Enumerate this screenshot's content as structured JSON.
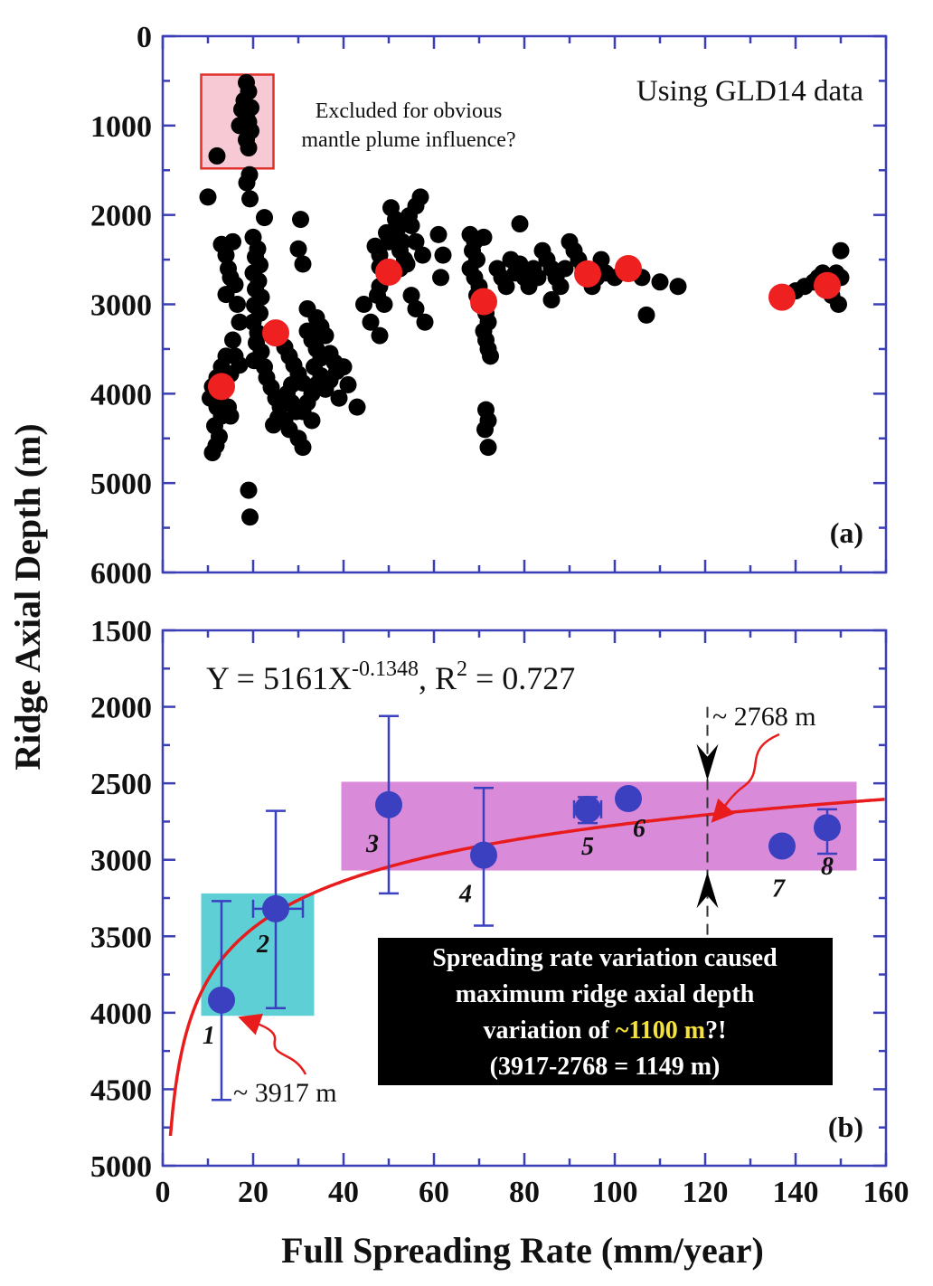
{
  "y_axis_title": "Ridge Axial Depth (m)",
  "x_axis_title": "Full Spreading Rate (mm/year)",
  "chart_data": [
    {
      "panel": "a",
      "type": "scatter",
      "panel_label": "(a)",
      "dataset_note": "Using GLD14 data",
      "excluded_note_line1": "Excluded for obvious",
      "excluded_note_line2": "mantle plume influence?",
      "xlim": [
        0,
        160
      ],
      "ylim": [
        0,
        6000
      ],
      "y_inverted": true,
      "ytick_labels": [
        "0",
        "1000",
        "2000",
        "3000",
        "4000",
        "5000",
        "6000"
      ],
      "excluded_box": {
        "x": [
          8.5,
          24.5
        ],
        "y": [
          430,
          1480
        ]
      },
      "colors": {
        "points": "#000000",
        "bin_means": "#ee2020",
        "frame": "#3a3fb8",
        "excluded_fill": "#f7c9d4",
        "excluded_edge": "#e0302a"
      },
      "series": [
        {
          "kind": "ridge-points",
          "points": [
            [
              18.5,
              520
            ],
            [
              19,
              620
            ],
            [
              18,
              720
            ],
            [
              19.5,
              800
            ],
            [
              17.5,
              820
            ],
            [
              18.5,
              880
            ],
            [
              19,
              960
            ],
            [
              17,
              1000
            ],
            [
              19.5,
              1060
            ],
            [
              18.5,
              1160
            ],
            [
              19,
              1250
            ],
            [
              12,
              1340
            ],
            [
              19.2,
              1550
            ],
            [
              18.6,
              1640
            ],
            [
              19.3,
              1820
            ],
            [
              10,
              1800
            ],
            [
              22.5,
              2030
            ],
            [
              20,
              2250
            ],
            [
              21,
              2380
            ],
            [
              20.5,
              2470
            ],
            [
              21.5,
              2560
            ],
            [
              20,
              2650
            ],
            [
              21.2,
              2740
            ],
            [
              20.5,
              2830
            ],
            [
              21.8,
              2920
            ],
            [
              20.3,
              3010
            ],
            [
              21.5,
              3100
            ],
            [
              20,
              3200
            ],
            [
              21,
              3320
            ],
            [
              20.7,
              3430
            ],
            [
              21.8,
              3530
            ],
            [
              20.2,
              3630
            ],
            [
              22.5,
              3700
            ],
            [
              23,
              3820
            ],
            [
              24,
              3930
            ],
            [
              25,
              4050
            ],
            [
              26,
              4150
            ],
            [
              25.5,
              4270
            ],
            [
              24.5,
              4350
            ],
            [
              13,
              2330
            ],
            [
              14,
              2450
            ],
            [
              15.5,
              2300
            ],
            [
              14.5,
              2600
            ],
            [
              15,
              2700
            ],
            [
              16,
              2780
            ],
            [
              14,
              2890
            ],
            [
              16.5,
              3000
            ],
            [
              17,
              3200
            ],
            [
              15.5,
              3400
            ],
            [
              14,
              3580
            ],
            [
              13,
              3700
            ],
            [
              12,
              3820
            ],
            [
              11,
              3920
            ],
            [
              10.5,
              4050
            ],
            [
              12,
              4150
            ],
            [
              13,
              4250
            ],
            [
              11.5,
              4360
            ],
            [
              12.5,
              4480
            ],
            [
              11.8,
              4580
            ],
            [
              11,
              4660
            ],
            [
              16,
              3580
            ],
            [
              17,
              3680
            ],
            [
              15,
              3780
            ],
            [
              14,
              3900
            ],
            [
              13,
              4000
            ],
            [
              14.5,
              4150
            ],
            [
              15,
              4250
            ],
            [
              27,
              3480
            ],
            [
              28,
              3580
            ],
            [
              29,
              3680
            ],
            [
              30,
              3780
            ],
            [
              31,
              3880
            ],
            [
              28.5,
              3900
            ],
            [
              27.5,
              4000
            ],
            [
              28.5,
              4100
            ],
            [
              29.5,
              4200
            ],
            [
              27,
              4300
            ],
            [
              28,
              4400
            ],
            [
              30,
              4500
            ],
            [
              31,
              4600
            ],
            [
              32,
              3300
            ],
            [
              33,
              3400
            ],
            [
              34,
              3500
            ],
            [
              35,
              3600
            ],
            [
              33.5,
              3700
            ],
            [
              35,
              3800
            ],
            [
              34,
              3900
            ],
            [
              33,
              4000
            ],
            [
              32,
              4100
            ],
            [
              31,
              4200
            ],
            [
              33,
              4300
            ],
            [
              30.5,
              2050
            ],
            [
              30,
              2380
            ],
            [
              31,
              2550
            ],
            [
              32,
              3050
            ],
            [
              34,
              3150
            ],
            [
              35,
              3250
            ],
            [
              36,
              3350
            ],
            [
              37,
              3550
            ],
            [
              38,
              3650
            ],
            [
              38.5,
              3750
            ],
            [
              37,
              3850
            ],
            [
              36,
              3950
            ],
            [
              39,
              4050
            ],
            [
              40,
              3700
            ],
            [
              41,
              3900
            ],
            [
              43,
              4150
            ],
            [
              44.5,
              3000
            ],
            [
              19,
              5080
            ],
            [
              19.3,
              5380
            ],
            [
              47,
              2350
            ],
            [
              48,
              2450
            ],
            [
              49.5,
              2200
            ],
            [
              50,
              2300
            ],
            [
              50.5,
              1920
            ],
            [
              51.5,
              2050
            ],
            [
              52,
              2150
            ],
            [
              53,
              2300
            ],
            [
              52.5,
              2400
            ],
            [
              53.5,
              2500
            ],
            [
              52.5,
              2600
            ],
            [
              54.5,
              2010
            ],
            [
              55,
              2120
            ],
            [
              56,
              1900
            ],
            [
              57,
              1800
            ],
            [
              56,
              2300
            ],
            [
              57.5,
              2450
            ],
            [
              54,
              2550
            ],
            [
              48,
              2800
            ],
            [
              47.5,
              2900
            ],
            [
              49,
              3000
            ],
            [
              46,
              3200
            ],
            [
              48,
              3350
            ],
            [
              55,
              2900
            ],
            [
              56,
              3050
            ],
            [
              58,
              3200
            ],
            [
              48,
              2580
            ],
            [
              61,
              2220
            ],
            [
              62,
              2450
            ],
            [
              61.5,
              2700
            ],
            [
              68,
              2220
            ],
            [
              69,
              2300
            ],
            [
              68.5,
              2400
            ],
            [
              69.5,
              2500
            ],
            [
              68,
              2600
            ],
            [
              69,
              2700
            ],
            [
              70,
              2800
            ],
            [
              69.5,
              2900
            ],
            [
              70,
              3000
            ],
            [
              71,
              2250
            ],
            [
              71.5,
              3100
            ],
            [
              72,
              3200
            ],
            [
              71,
              3300
            ],
            [
              71.5,
              3400
            ],
            [
              72,
              3500
            ],
            [
              72.5,
              3580
            ],
            [
              71.5,
              4180
            ],
            [
              72,
              4300
            ],
            [
              71.3,
              4400
            ],
            [
              72,
              4600
            ],
            [
              74,
              2600
            ],
            [
              75,
              2700
            ],
            [
              76,
              2800
            ],
            [
              77,
              2500
            ],
            [
              78,
              2650
            ],
            [
              79,
              2550
            ],
            [
              80,
              2700
            ],
            [
              81,
              2800
            ],
            [
              82,
              2600
            ],
            [
              83,
              2700
            ],
            [
              84,
              2400
            ],
            [
              85,
              2500
            ],
            [
              86,
              2600
            ],
            [
              87,
              2700
            ],
            [
              88,
              2800
            ],
            [
              89,
              2600
            ],
            [
              90,
              2300
            ],
            [
              91,
              2400
            ],
            [
              92,
              2500
            ],
            [
              93,
              2600
            ],
            [
              94,
              2700
            ],
            [
              95,
              2800
            ],
            [
              96,
              2700
            ],
            [
              97,
              2500
            ],
            [
              98,
              2650
            ],
            [
              100,
              2700
            ],
            [
              102,
              2580
            ],
            [
              104,
              2620
            ],
            [
              106,
              2700
            ],
            [
              110,
              2750
            ],
            [
              114,
              2800
            ],
            [
              86,
              2950
            ],
            [
              79,
              2100
            ],
            [
              107,
              3120
            ],
            [
              140,
              2850
            ],
            [
              142,
              2800
            ],
            [
              144,
              2750
            ],
            [
              145,
              2700
            ],
            [
              146,
              2650
            ],
            [
              147,
              2750
            ],
            [
              148,
              2900
            ],
            [
              149,
              2650
            ],
            [
              150,
              2400
            ],
            [
              150,
              2700
            ],
            [
              149.5,
              3000
            ]
          ]
        },
        {
          "kind": "bin-means",
          "points": [
            [
              13,
              3920
            ],
            [
              25,
              3320
            ],
            [
              50,
              2640
            ],
            [
              71,
              2970
            ],
            [
              94,
              2660
            ],
            [
              103,
              2600
            ],
            [
              137,
              2920
            ],
            [
              147,
              2790
            ]
          ]
        }
      ]
    },
    {
      "panel": "b",
      "type": "scatter",
      "panel_label": "(b)",
      "xlim": [
        0,
        160
      ],
      "ylim": [
        1500,
        5000
      ],
      "y_inverted": true,
      "ytick_labels": [
        "1500",
        "2000",
        "2500",
        "3000",
        "3500",
        "4000",
        "4500",
        "5000"
      ],
      "xtick_labels": [
        "0",
        "20",
        "40",
        "60",
        "80",
        "100",
        "120",
        "140",
        "160"
      ],
      "fit_equation": {
        "lhs": "Y = 5161X",
        "exponent": "-0.1348",
        "mid": ", R",
        "r_exp": "2",
        "rhs": " = 0.727"
      },
      "fit_curve": {
        "a": 5161,
        "b": -0.1348,
        "r2": 0.727
      },
      "points": [
        {
          "label": "1",
          "x": 13,
          "y": 3917,
          "y_err": [
            3270,
            4570
          ]
        },
        {
          "label": "2",
          "x": 25,
          "y": 3320,
          "x_err": [
            20,
            31
          ],
          "y_err": [
            2680,
            3970
          ]
        },
        {
          "label": "3",
          "x": 50,
          "y": 2640,
          "x_err": [
            48,
            52
          ],
          "y_err": [
            2060,
            3220
          ]
        },
        {
          "label": "4",
          "x": 71,
          "y": 2970,
          "y_err": [
            2530,
            3430
          ]
        },
        {
          "label": "5",
          "x": 94,
          "y": 2670,
          "x_err": [
            91,
            97
          ],
          "y_err": [
            2590,
            2760
          ]
        },
        {
          "label": "6",
          "x": 103,
          "y": 2600
        },
        {
          "label": "7",
          "x": 137,
          "y": 2910
        },
        {
          "label": "8",
          "x": 147,
          "y": 2790,
          "y_err": [
            2670,
            2960
          ]
        }
      ],
      "boxes": [
        {
          "name": "slow-spreading-box",
          "x": [
            8.5,
            33.5
          ],
          "y": [
            3220,
            4020
          ],
          "color": "#5fcfd6"
        },
        {
          "name": "fast-spreading-box",
          "x": [
            39.5,
            153.5
          ],
          "y": [
            2490,
            3070
          ],
          "color": "#d98ad9"
        }
      ],
      "reference_line": {
        "x": 120.5,
        "y": [
          2000,
          3500
        ]
      },
      "annotation_high": "~ 2768 m",
      "annotation_low": "~ 3917 m",
      "info_line1": "Spreading rate variation caused",
      "info_line2": "maximum ridge axial depth",
      "info_line3_pre": "variation of ",
      "info_line3_hl": "~1100 m",
      "info_line3_post": "?!",
      "info_line4": "(3917-2768 = 1149 m)",
      "colors": {
        "points": "#3a40c0",
        "fit": "#e81c1c",
        "arrow": "#e81c1c",
        "info_bg": "#000000",
        "info_highlight": "#f5e23a",
        "frame": "#3a3fb8"
      }
    }
  ]
}
